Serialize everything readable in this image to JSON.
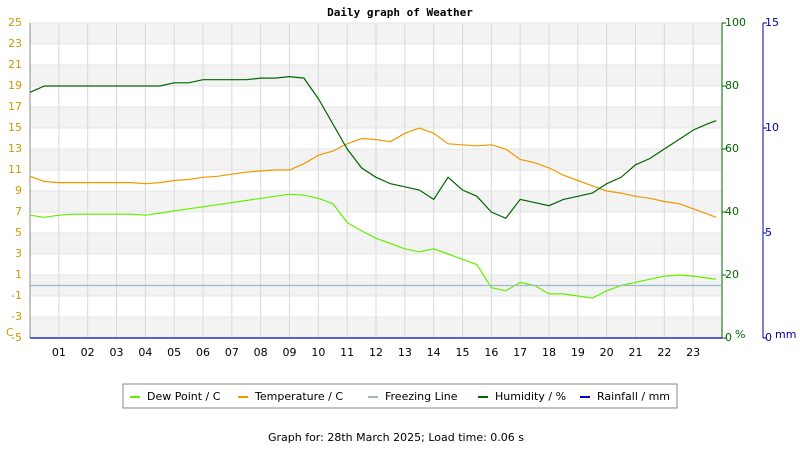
{
  "chart_data": {
    "type": "line",
    "title": "Daily graph of Weather",
    "ylabel": "C",
    "y2label": "%",
    "y3label": "mm",
    "footer": "Graph for: 28th March 2025; Load time: 0.06 s",
    "xlim": [
      0,
      24
    ],
    "xticks": [
      {
        "value": 1,
        "label": "01"
      },
      {
        "value": 2,
        "label": "02"
      },
      {
        "value": 3,
        "label": "03"
      },
      {
        "value": 4,
        "label": "04"
      },
      {
        "value": 5,
        "label": "05"
      },
      {
        "value": 6,
        "label": "06"
      },
      {
        "value": 7,
        "label": "07"
      },
      {
        "value": 8,
        "label": "08"
      },
      {
        "value": 9,
        "label": "09"
      },
      10,
      11,
      12,
      13,
      14,
      15,
      16,
      17,
      18,
      19,
      20,
      21,
      22,
      23
    ],
    "ylim": [
      -5,
      25
    ],
    "yticks": [
      -5,
      -3,
      -1,
      1,
      3,
      5,
      7,
      9,
      11,
      13,
      15,
      17,
      19,
      21,
      23,
      25
    ],
    "y2lim": [
      0,
      100
    ],
    "y2ticks": [
      0,
      20,
      40,
      60,
      80,
      100
    ],
    "y3lim": [
      0,
      15
    ],
    "y3ticks": [
      0,
      5,
      10,
      15
    ],
    "grid": true,
    "x": [
      0,
      0.5,
      1,
      1.5,
      2,
      2.5,
      3,
      3.5,
      4,
      4.5,
      5,
      5.5,
      6,
      6.5,
      7,
      7.5,
      8,
      8.5,
      9,
      9.5,
      10,
      10.5,
      11,
      11.5,
      12,
      12.5,
      13,
      13.5,
      14,
      14.5,
      15,
      15.5,
      16,
      16.5,
      17,
      17.5,
      18,
      18.5,
      19,
      19.5,
      20,
      20.5,
      21,
      21.5,
      22,
      22.5,
      23,
      23.5,
      23.8
    ],
    "series": [
      {
        "name": "Dew Point / C",
        "color": "#66ee00",
        "axis": "y",
        "values": [
          6.7,
          6.5,
          6.7,
          6.8,
          6.8,
          6.8,
          6.8,
          6.8,
          6.7,
          6.9,
          7.1,
          7.3,
          7.5,
          7.7,
          7.9,
          8.1,
          8.3,
          8.5,
          8.7,
          8.6,
          8.3,
          7.8,
          6.0,
          5.2,
          4.5,
          4.0,
          3.5,
          3.2,
          3.5,
          3.0,
          2.5,
          2.0,
          -0.2,
          -0.5,
          0.3,
          0,
          -0.8,
          -0.8,
          -1.0,
          -1.2,
          -0.5,
          0,
          0.3,
          0.6,
          0.9,
          1.0,
          0.9,
          0.7,
          0.6
        ]
      },
      {
        "name": "Temperature / C",
        "color": "#ee9900",
        "axis": "y",
        "values": [
          10.4,
          9.9,
          9.8,
          9.8,
          9.8,
          9.8,
          9.8,
          9.8,
          9.7,
          9.8,
          10.0,
          10.1,
          10.3,
          10.4,
          10.6,
          10.8,
          10.9,
          11.0,
          11.0,
          11.6,
          12.4,
          12.8,
          13.5,
          14.0,
          13.9,
          13.7,
          14.5,
          15.0,
          14.5,
          13.5,
          13.4,
          13.3,
          13.4,
          13.0,
          12.0,
          11.7,
          11.2,
          10.5,
          10.0,
          9.5,
          9.0,
          8.8,
          8.5,
          8.3,
          8.0,
          7.8,
          7.3,
          6.8,
          6.5
        ]
      },
      {
        "name": "Freezing Line",
        "color": "#99bbcc",
        "axis": "y",
        "x": [
          0,
          24
        ],
        "values": [
          0,
          0
        ]
      },
      {
        "name": "Humidity / %",
        "color": "#006600",
        "axis": "y2",
        "values": [
          78,
          80,
          80,
          80,
          80,
          80,
          80,
          80,
          80,
          80,
          81,
          81,
          82,
          82,
          82,
          82,
          82.5,
          82.5,
          83,
          82.5,
          76,
          68,
          60,
          54,
          51,
          49,
          48,
          47,
          44,
          51,
          47,
          45,
          40,
          38,
          44,
          43,
          42,
          44,
          45,
          46,
          49,
          51,
          55,
          57,
          60,
          63,
          66,
          68,
          69
        ]
      },
      {
        "name": "Rainfall / mm",
        "color": "#0000cc",
        "axis": "y3",
        "x": [
          0,
          24
        ],
        "values": [
          0,
          0
        ]
      }
    ]
  }
}
